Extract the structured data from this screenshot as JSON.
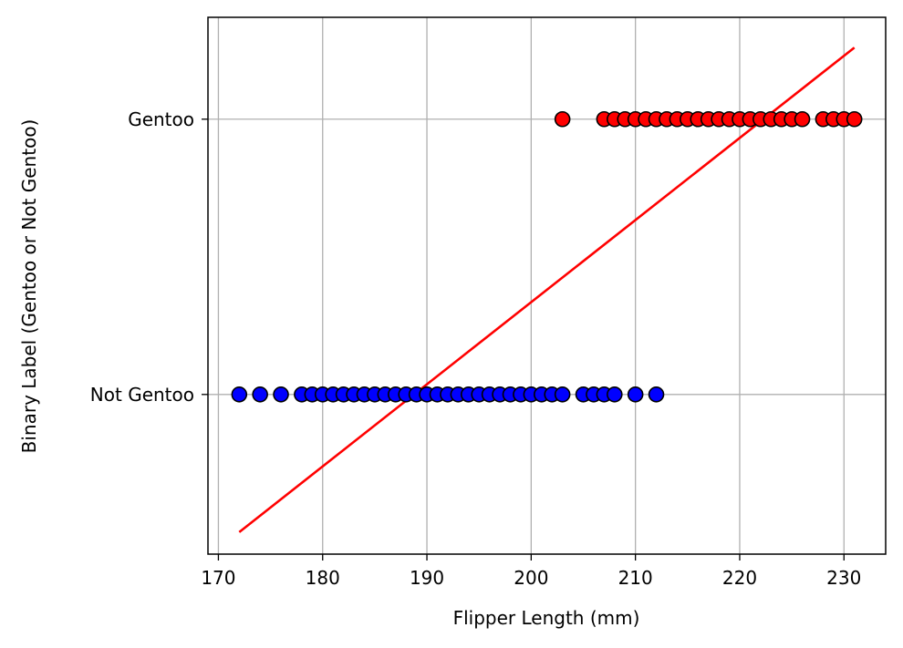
{
  "chart_data": {
    "type": "scatter",
    "xlabel": "Flipper Length (mm)",
    "ylabel": "Binary Label (Gentoo or Not Gentoo)",
    "xlim": [
      169,
      234
    ],
    "ylim": [
      -0.58,
      1.37
    ],
    "x_ticks": [
      170,
      180,
      190,
      200,
      210,
      220,
      230
    ],
    "y_ticks": [
      {
        "value": 0,
        "label": "Not Gentoo"
      },
      {
        "value": 1,
        "label": "Gentoo"
      }
    ],
    "grid": true,
    "series": [
      {
        "label_value": 0,
        "color": "#0000ff",
        "x": [
          172,
          174,
          176,
          178,
          179,
          180,
          181,
          182,
          183,
          184,
          185,
          186,
          187,
          188,
          189,
          190,
          191,
          192,
          193,
          194,
          195,
          196,
          197,
          198,
          199,
          200,
          201,
          202,
          203,
          205,
          206,
          207,
          208,
          210,
          212
        ]
      },
      {
        "label_value": 1,
        "color": "#ff0000",
        "x": [
          203,
          207,
          208,
          209,
          210,
          211,
          212,
          213,
          214,
          215,
          216,
          217,
          218,
          219,
          220,
          221,
          222,
          223,
          224,
          225,
          226,
          228,
          229,
          230,
          231
        ]
      }
    ],
    "fit_line": {
      "color": "#ff0000",
      "x": [
        172,
        231
      ],
      "y": [
        -0.5,
        1.26
      ]
    },
    "marker_edge_color": "#000000"
  }
}
